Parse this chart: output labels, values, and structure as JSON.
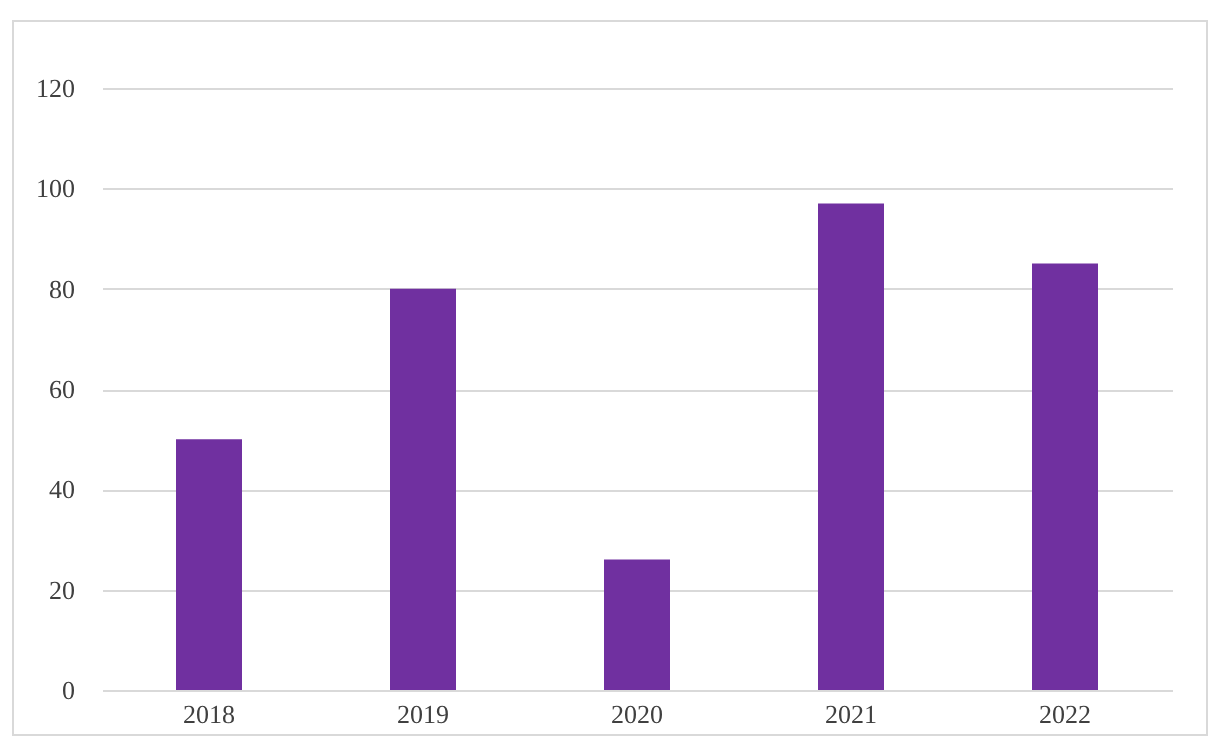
{
  "chart_data": {
    "type": "bar",
    "categories": [
      "2018",
      "2019",
      "2020",
      "2021",
      "2022"
    ],
    "values": [
      50,
      80,
      26,
      97,
      85
    ],
    "color": "#7030a0",
    "ylim": [
      0,
      120
    ],
    "yticks": [
      0,
      20,
      40,
      60,
      80,
      100,
      120
    ],
    "grid": "y"
  }
}
